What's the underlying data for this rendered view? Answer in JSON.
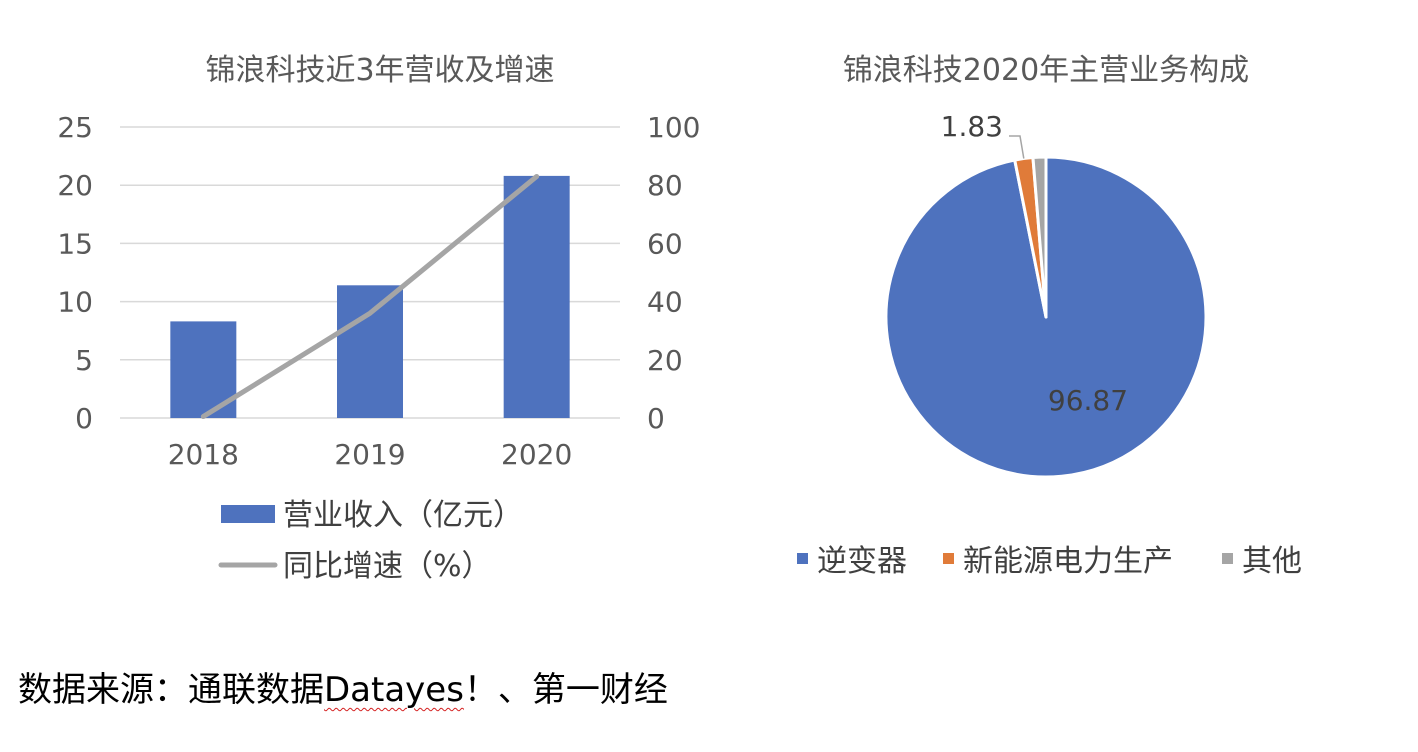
{
  "chart_data": [
    {
      "type": "bar",
      "title": "锦浪科技近3年营收及增速",
      "categories": [
        "2018",
        "2019",
        "2020"
      ],
      "series": [
        {
          "name": "营业收入（亿元）",
          "kind": "bar",
          "axis": "left",
          "color": "#4e72be",
          "values": [
            8.3,
            11.4,
            20.8
          ]
        },
        {
          "name": "同比增速（%）",
          "kind": "line",
          "axis": "right",
          "color": "#a5a5a5",
          "values": [
            0.5,
            36,
            83
          ]
        }
      ],
      "ylim": [
        0,
        25
      ],
      "y2lim": [
        0,
        100
      ],
      "yticks": [
        "0",
        "5",
        "10",
        "15",
        "20",
        "25"
      ],
      "y2ticks": [
        "0",
        "20",
        "40",
        "60",
        "80",
        "100"
      ],
      "grid": true,
      "legend_position": "bottom"
    },
    {
      "type": "pie",
      "title": "锦浪科技2020年主营业务构成",
      "slices": [
        {
          "name": "逆变器",
          "value": 96.87,
          "color": "#4e72be",
          "label": "96.87"
        },
        {
          "name": "新能源电力生产",
          "value": 1.83,
          "color": "#e07b39",
          "label": "1.83"
        },
        {
          "name": "其他",
          "value": 1.3,
          "color": "#a5a5a5",
          "label": ""
        }
      ],
      "legend_position": "bottom"
    }
  ],
  "source": {
    "prefix": "数据来源：通联数据",
    "underlined": "Datayes",
    "suffix": "！、第一财经"
  }
}
